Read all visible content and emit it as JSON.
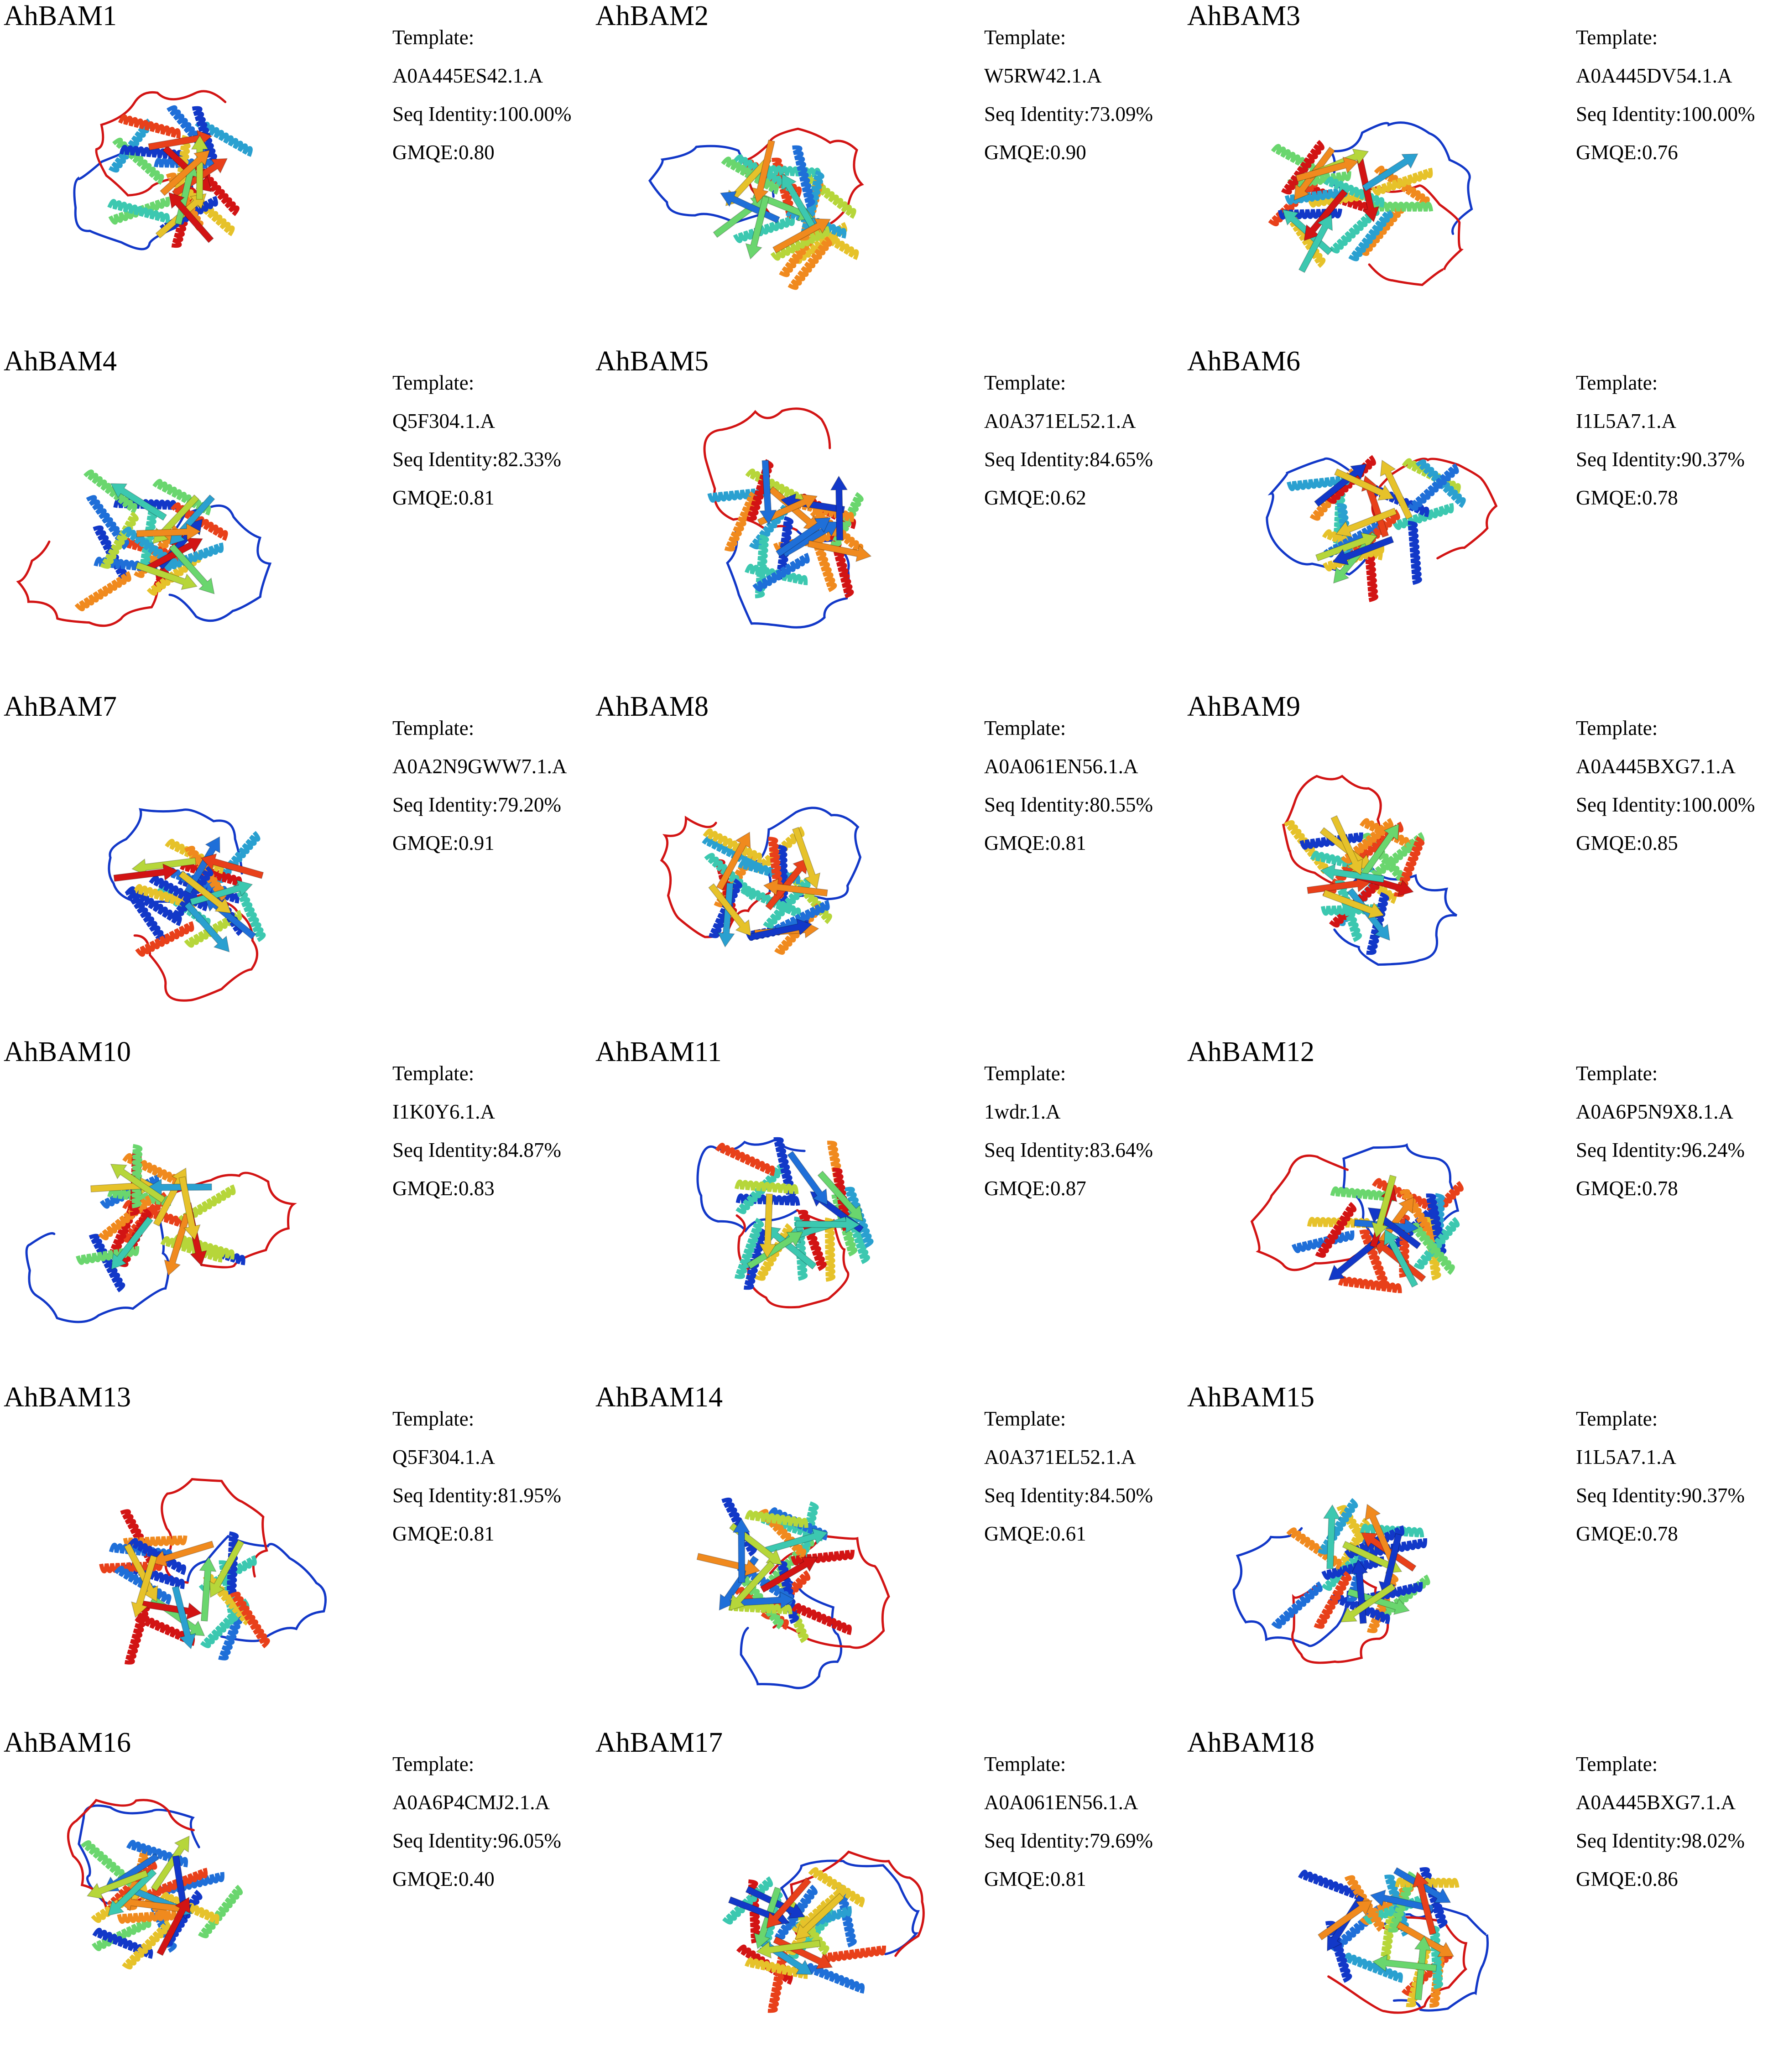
{
  "figure": {
    "panels": [
      {
        "name": "AhBAM1",
        "template_label": "Template:",
        "template": "A0A445ES42.1.A",
        "seq_identity": "Seq Identity:100.00%",
        "gmqe": "GMQE:0.80"
      },
      {
        "name": "AhBAM2",
        "template_label": "Template:",
        "template": "W5RW42.1.A",
        "seq_identity": "Seq Identity:73.09%",
        "gmqe": "GMQE:0.90"
      },
      {
        "name": "AhBAM3",
        "template_label": "Template:",
        "template": "A0A445DV54.1.A",
        "seq_identity": "Seq Identity:100.00%",
        "gmqe": "GMQE:0.76"
      },
      {
        "name": "AhBAM4",
        "template_label": "Template:",
        "template": "Q5F304.1.A",
        "seq_identity": "Seq Identity:82.33%",
        "gmqe": "GMQE:0.81"
      },
      {
        "name": "AhBAM5",
        "template_label": "Template:",
        "template": "A0A371EL52.1.A",
        "seq_identity": "Seq Identity:84.65%",
        "gmqe": "GMQE:0.62"
      },
      {
        "name": "AhBAM6",
        "template_label": "Template:",
        "template": "I1L5A7.1.A",
        "seq_identity": "Seq Identity:90.37%",
        "gmqe": "GMQE:0.78"
      },
      {
        "name": "AhBAM7",
        "template_label": "Template:",
        "template": "A0A2N9GWW7.1.A",
        "seq_identity": "Seq Identity:79.20%",
        "gmqe": "GMQE:0.91"
      },
      {
        "name": "AhBAM8",
        "template_label": "Template:",
        "template": "A0A061EN56.1.A",
        "seq_identity": "Seq Identity:80.55%",
        "gmqe": "GMQE:0.81"
      },
      {
        "name": "AhBAM9",
        "template_label": "Template:",
        "template": "A0A445BXG7.1.A",
        "seq_identity": "Seq Identity:100.00%",
        "gmqe": "GMQE:0.85"
      },
      {
        "name": "AhBAM10",
        "template_label": "Template:",
        "template": "I1K0Y6.1.A",
        "seq_identity": "Seq Identity:84.87%",
        "gmqe": "GMQE:0.83"
      },
      {
        "name": "AhBAM11",
        "template_label": "Template:",
        "template": "1wdr.1.A",
        "seq_identity": "Seq Identity:83.64%",
        "gmqe": "GMQE:0.87"
      },
      {
        "name": "AhBAM12",
        "template_label": "Template:",
        "template": "A0A6P5N9X8.1.A",
        "seq_identity": "Seq Identity:96.24%",
        "gmqe": "GMQE:0.78"
      },
      {
        "name": "AhBAM13",
        "template_label": "Template:",
        "template": "Q5F304.1.A",
        "seq_identity": "Seq Identity:81.95%",
        "gmqe": "GMQE:0.81"
      },
      {
        "name": "AhBAM14",
        "template_label": "Template:",
        "template": "A0A371EL52.1.A",
        "seq_identity": "Seq Identity:84.50%",
        "gmqe": "GMQE:0.61"
      },
      {
        "name": "AhBAM15",
        "template_label": "Template:",
        "template": "I1L5A7.1.A",
        "seq_identity": "Seq Identity:90.37%",
        "gmqe": "GMQE:0.78"
      },
      {
        "name": "AhBAM16",
        "template_label": "Template:",
        "template": "A0A6P4CMJ2.1.A",
        "seq_identity": "Seq Identity:96.05%",
        "gmqe": "GMQE:0.40"
      },
      {
        "name": "AhBAM17",
        "template_label": "Template:",
        "template": "A0A061EN56.1.A",
        "seq_identity": "Seq Identity:79.69%",
        "gmqe": "GMQE:0.81"
      },
      {
        "name": "AhBAM18",
        "template_label": "Template:",
        "template": "A0A445BXG7.1.A",
        "seq_identity": "Seq Identity:98.02%",
        "gmqe": "GMQE:0.86"
      }
    ],
    "ribbon_colors": [
      "#1238c8",
      "#1f6fd8",
      "#2aa0d0",
      "#3cc8b0",
      "#6ad66e",
      "#b6d63a",
      "#e6c22a",
      "#f08a1e",
      "#e8401a",
      "#d21414"
    ]
  }
}
